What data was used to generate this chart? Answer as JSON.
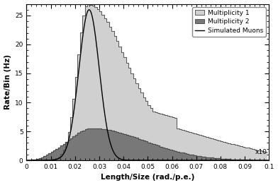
{
  "title": "",
  "xlabel": "Length/Size (rad./p.e.)",
  "ylabel": "Rate/Bin (Hz)",
  "xlim": [
    0,
    0.1
  ],
  "ylim": [
    0,
    27
  ],
  "xticks": [
    0,
    0.01,
    0.02,
    0.03,
    0.04,
    0.05,
    0.06,
    0.07,
    0.08,
    0.09,
    0.1
  ],
  "yticks": [
    0,
    5,
    10,
    15,
    20,
    25
  ],
  "bin_width": 0.001,
  "mult1_color": "#d0d0d0",
  "mult2_color": "#787878",
  "curve_color": "#000000",
  "edge_color": "#444444",
  "background_color": "#ffffff",
  "legend_labels": [
    "Multiplicity 1",
    "Multiplicity 2",
    "Simulated Muons"
  ],
  "curve_peak": 26.0,
  "curve_peak_x": 0.0258,
  "curve_sigma": 0.0042,
  "figsize": [
    3.92,
    2.62
  ],
  "dpi": 100
}
